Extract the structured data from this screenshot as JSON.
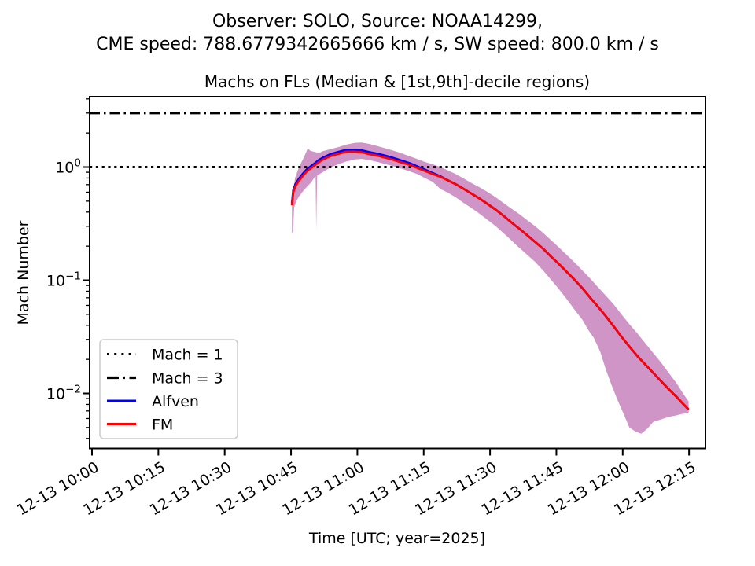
{
  "figure": {
    "suptitle_line1": "Observer: SOLO, Source: NOAA14299,",
    "suptitle_line2": "CME speed: 788.6779342665666 km / s, SW speed: 800.0 km / s",
    "axes_title": "Machs on FLs (Median & [1st,9th]-decile regions)",
    "xlabel": "Time [UTC; year=2025]",
    "ylabel": "Mach Number"
  },
  "colors": {
    "fm_line": "#ff0000",
    "alfven_line": "#0000ff",
    "band_fill": "#cf95c6",
    "reference_lines": "#000000",
    "legend_border": "#cccccc",
    "background": "#ffffff"
  },
  "legend": {
    "items": [
      {
        "label": "Mach = 1",
        "style": "dotted",
        "color": "#000000"
      },
      {
        "label": "Mach = 3",
        "style": "dashdot",
        "color": "#000000"
      },
      {
        "label": "Alfven",
        "style": "solid",
        "color": "#0000ff"
      },
      {
        "label": "FM",
        "style": "solid",
        "color": "#ff0000"
      }
    ]
  },
  "y_ticks": [
    {
      "base": "10",
      "exp": "0",
      "value": 1
    },
    {
      "base": "10",
      "exp": "−1",
      "value": 0.1
    },
    {
      "base": "10",
      "exp": "−2",
      "value": 0.01
    }
  ],
  "chart_data": {
    "type": "line",
    "title": "Machs on FLs (Median & [1st,9th]-decile regions)",
    "xlabel": "Time [UTC; year=2025]",
    "ylabel": "Mach Number",
    "yscale": "log",
    "ylim": [
      0.00327,
      4.18
    ],
    "xlim_minutes": [
      -0.5,
      138.7
    ],
    "x_unit": "minutes after 2025-12-13 10:00 UTC",
    "x_ticks": [
      "12-13 10:00",
      "12-13 10:15",
      "12-13 10:30",
      "12-13 10:45",
      "12-13 11:00",
      "12-13 11:15",
      "12-13 11:30",
      "12-13 11:45",
      "12-13 12:00",
      "12-13 12:15"
    ],
    "x_tick_minutes": [
      0,
      15,
      30,
      45,
      60,
      75,
      90,
      105,
      120,
      135
    ],
    "grid": false,
    "legend_position": "lower left",
    "hlines": [
      {
        "label": "Mach = 1",
        "value": 1,
        "style": "dotted"
      },
      {
        "label": "Mach = 3",
        "value": 3,
        "style": "dashdot"
      }
    ],
    "band": {
      "name": "1st-9th decile region",
      "fill": "#cf95c6",
      "upper": [
        [
          45.2,
          0.52
        ],
        [
          45.9,
          0.8
        ],
        [
          46.8,
          1.0
        ],
        [
          47.9,
          1.22
        ],
        [
          48.4,
          1.35
        ],
        [
          48.8,
          1.47
        ],
        [
          49.3,
          1.4
        ],
        [
          50.0,
          1.37
        ],
        [
          50.7,
          1.35
        ],
        [
          51.3,
          1.33
        ],
        [
          52.1,
          1.38
        ],
        [
          53.9,
          1.44
        ],
        [
          55.7,
          1.5
        ],
        [
          57.5,
          1.58
        ],
        [
          59.5,
          1.64
        ],
        [
          61.0,
          1.65
        ],
        [
          62.8,
          1.6
        ],
        [
          64.6,
          1.53
        ],
        [
          66.4,
          1.46
        ],
        [
          68.1,
          1.4
        ],
        [
          69.9,
          1.33
        ],
        [
          71.7,
          1.25
        ],
        [
          73.5,
          1.18
        ],
        [
          75.3,
          1.11
        ],
        [
          77.0,
          1.06
        ],
        [
          78.8,
          1.0
        ],
        [
          80.6,
          0.93
        ],
        [
          82.4,
          0.86
        ],
        [
          84.1,
          0.79
        ],
        [
          85.9,
          0.72
        ],
        [
          87.7,
          0.66
        ],
        [
          89.5,
          0.6
        ],
        [
          91.3,
          0.54
        ],
        [
          93.1,
          0.48
        ],
        [
          94.8,
          0.43
        ],
        [
          96.6,
          0.385
        ],
        [
          98.4,
          0.34
        ],
        [
          100.2,
          0.3
        ],
        [
          102.0,
          0.262
        ],
        [
          103.7,
          0.228
        ],
        [
          105.5,
          0.196
        ],
        [
          107.3,
          0.168
        ],
        [
          109.1,
          0.144
        ],
        [
          110.9,
          0.122
        ],
        [
          112.6,
          0.104
        ],
        [
          114.4,
          0.087
        ],
        [
          116.2,
          0.073
        ],
        [
          118.0,
          0.061
        ],
        [
          119.7,
          0.05
        ],
        [
          121.5,
          0.041
        ],
        [
          123.3,
          0.034
        ],
        [
          125.1,
          0.0278
        ],
        [
          126.9,
          0.0228
        ],
        [
          128.7,
          0.0187
        ],
        [
          130.4,
          0.0152
        ],
        [
          132.2,
          0.0123
        ],
        [
          133.5,
          0.0102
        ],
        [
          134.9,
          0.0085
        ]
      ],
      "lower": [
        [
          45.2,
          0.26
        ],
        [
          45.45,
          0.27
        ],
        [
          45.7,
          0.44
        ],
        [
          46.2,
          0.5
        ],
        [
          46.8,
          0.55
        ],
        [
          47.7,
          0.61
        ],
        [
          48.6,
          0.67
        ],
        [
          49.5,
          0.73
        ],
        [
          50.2,
          0.8
        ],
        [
          50.55,
          0.83
        ],
        [
          50.7,
          0.28
        ],
        [
          50.9,
          0.84
        ],
        [
          52.1,
          0.9
        ],
        [
          53.9,
          0.99
        ],
        [
          55.7,
          1.06
        ],
        [
          57.5,
          1.12
        ],
        [
          59.5,
          1.17
        ],
        [
          61.0,
          1.18
        ],
        [
          62.8,
          1.15
        ],
        [
          64.6,
          1.11
        ],
        [
          66.4,
          1.06
        ],
        [
          68.1,
          1.02
        ],
        [
          69.9,
          0.97
        ],
        [
          71.7,
          0.92
        ],
        [
          73.5,
          0.87
        ],
        [
          75.3,
          0.8
        ],
        [
          77.0,
          0.74
        ],
        [
          78.8,
          0.64
        ],
        [
          80.6,
          0.59
        ],
        [
          82.4,
          0.535
        ],
        [
          84.1,
          0.48
        ],
        [
          85.9,
          0.432
        ],
        [
          87.7,
          0.385
        ],
        [
          89.5,
          0.34
        ],
        [
          91.3,
          0.3
        ],
        [
          93.1,
          0.26
        ],
        [
          94.8,
          0.225
        ],
        [
          96.6,
          0.194
        ],
        [
          98.4,
          0.168
        ],
        [
          100.2,
          0.145
        ],
        [
          102.0,
          0.122
        ],
        [
          103.7,
          0.102
        ],
        [
          105.5,
          0.084
        ],
        [
          107.3,
          0.0685
        ],
        [
          109.1,
          0.055
        ],
        [
          110.9,
          0.0447
        ],
        [
          112.2,
          0.0365
        ],
        [
          113.5,
          0.0308
        ],
        [
          114.9,
          0.0235
        ],
        [
          116.2,
          0.0162
        ],
        [
          117.5,
          0.0118
        ],
        [
          118.9,
          0.0086
        ],
        [
          120.2,
          0.0066
        ],
        [
          121.5,
          0.005
        ],
        [
          122.9,
          0.0046
        ],
        [
          124.2,
          0.0044
        ],
        [
          125.6,
          0.0049
        ],
        [
          126.9,
          0.0056
        ],
        [
          128.7,
          0.0059
        ],
        [
          130.4,
          0.0062
        ],
        [
          132.2,
          0.0064
        ],
        [
          133.5,
          0.0066
        ],
        [
          134.9,
          0.0067
        ]
      ]
    },
    "series": [
      {
        "name": "Alfven",
        "color": "#0000ff",
        "points": [
          [
            45.2,
            0.478
          ],
          [
            45.5,
            0.624
          ],
          [
            46.0,
            0.707
          ],
          [
            46.8,
            0.79
          ],
          [
            47.7,
            0.874
          ],
          [
            48.6,
            0.957
          ],
          [
            49.5,
            1.019
          ],
          [
            50.4,
            1.082
          ],
          [
            51.3,
            1.154
          ],
          [
            52.1,
            1.206
          ],
          [
            53.9,
            1.3
          ],
          [
            55.7,
            1.362
          ],
          [
            57.5,
            1.42
          ],
          [
            59.2,
            1.425
          ],
          [
            61.0,
            1.404
          ],
          [
            62.8,
            1.352
          ],
          [
            64.6,
            1.31
          ],
          [
            66.4,
            1.258
          ],
          [
            68.1,
            1.206
          ],
          [
            69.9,
            1.144
          ],
          [
            71.7,
            1.087
          ],
          [
            73.5,
            1.014
          ],
          [
            75.3,
            0.948
          ],
          [
            77.0,
            0.885
          ],
          [
            78.8,
            0.828
          ],
          [
            80.6,
            0.76
          ],
          [
            82.4,
            0.7
          ],
          [
            84.1,
            0.64
          ],
          [
            85.9,
            0.58
          ],
          [
            87.7,
            0.525
          ],
          [
            89.5,
            0.47
          ],
          [
            91.3,
            0.42
          ],
          [
            93.1,
            0.37
          ],
          [
            94.8,
            0.325
          ],
          [
            96.6,
            0.286
          ],
          [
            98.4,
            0.25
          ],
          [
            100.2,
            0.218
          ],
          [
            102.0,
            0.19
          ],
          [
            103.7,
            0.163
          ],
          [
            105.5,
            0.14
          ],
          [
            107.3,
            0.119
          ],
          [
            109.1,
            0.101
          ],
          [
            110.9,
            0.085
          ],
          [
            112.6,
            0.0705
          ],
          [
            114.4,
            0.0585
          ],
          [
            116.2,
            0.048
          ],
          [
            118.0,
            0.039
          ],
          [
            119.7,
            0.0318
          ],
          [
            121.5,
            0.026
          ],
          [
            123.3,
            0.0214
          ],
          [
            125.1,
            0.018
          ],
          [
            126.9,
            0.0152
          ],
          [
            128.7,
            0.0128
          ],
          [
            130.4,
            0.0109
          ],
          [
            132.2,
            0.0093
          ],
          [
            133.5,
            0.0082
          ],
          [
            134.9,
            0.0072
          ]
        ]
      },
      {
        "name": "FM",
        "color": "#ff0000",
        "points": [
          [
            45.2,
            0.46
          ],
          [
            45.5,
            0.6
          ],
          [
            46.0,
            0.68
          ],
          [
            46.8,
            0.76
          ],
          [
            47.7,
            0.84
          ],
          [
            48.6,
            0.92
          ],
          [
            49.5,
            0.98
          ],
          [
            50.4,
            1.04
          ],
          [
            51.3,
            1.11
          ],
          [
            52.1,
            1.16
          ],
          [
            53.9,
            1.25
          ],
          [
            55.7,
            1.31
          ],
          [
            57.5,
            1.365
          ],
          [
            59.2,
            1.37
          ],
          [
            61.0,
            1.35
          ],
          [
            62.8,
            1.3
          ],
          [
            64.6,
            1.26
          ],
          [
            66.4,
            1.21
          ],
          [
            68.1,
            1.16
          ],
          [
            69.9,
            1.1
          ],
          [
            71.7,
            1.05
          ],
          [
            73.5,
            0.985
          ],
          [
            75.3,
            0.925
          ],
          [
            77.0,
            0.87
          ],
          [
            78.8,
            0.82
          ],
          [
            80.6,
            0.76
          ],
          [
            82.4,
            0.7
          ],
          [
            84.1,
            0.64
          ],
          [
            85.9,
            0.58
          ],
          [
            87.7,
            0.525
          ],
          [
            89.5,
            0.47
          ],
          [
            91.3,
            0.42
          ],
          [
            93.1,
            0.37
          ],
          [
            94.8,
            0.325
          ],
          [
            96.6,
            0.286
          ],
          [
            98.4,
            0.25
          ],
          [
            100.2,
            0.218
          ],
          [
            102.0,
            0.19
          ],
          [
            103.7,
            0.163
          ],
          [
            105.5,
            0.14
          ],
          [
            107.3,
            0.119
          ],
          [
            109.1,
            0.101
          ],
          [
            110.9,
            0.085
          ],
          [
            112.6,
            0.0705
          ],
          [
            114.4,
            0.0585
          ],
          [
            116.2,
            0.048
          ],
          [
            118.0,
            0.039
          ],
          [
            119.7,
            0.0318
          ],
          [
            121.5,
            0.026
          ],
          [
            123.3,
            0.0214
          ],
          [
            125.1,
            0.018
          ],
          [
            126.9,
            0.0152
          ],
          [
            128.7,
            0.0128
          ],
          [
            130.4,
            0.0109
          ],
          [
            132.2,
            0.0093
          ],
          [
            133.5,
            0.0082
          ],
          [
            134.9,
            0.0072
          ]
        ]
      }
    ]
  }
}
